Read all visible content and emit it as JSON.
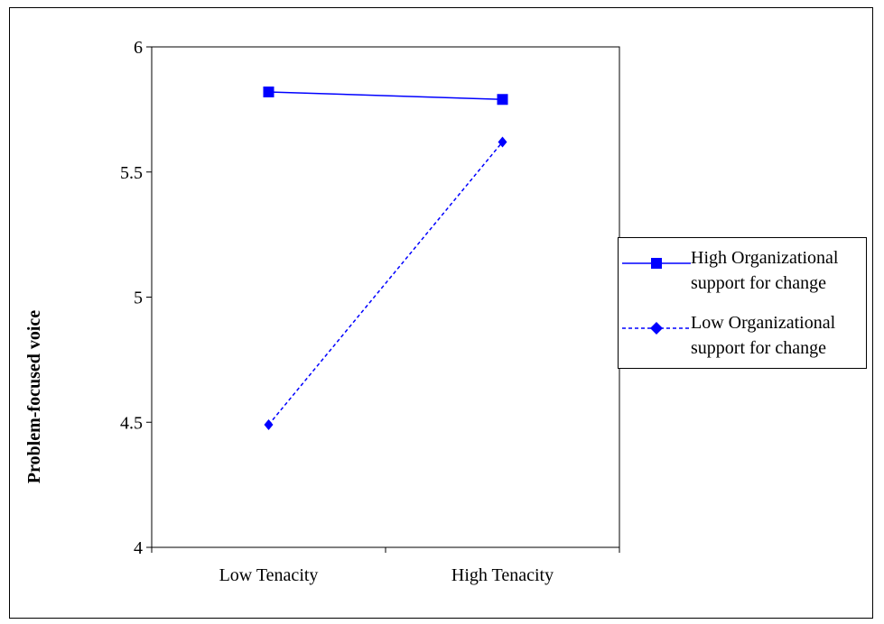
{
  "chart_data": {
    "type": "line",
    "categories": [
      "Low Tenacity",
      "High Tenacity"
    ],
    "series": [
      {
        "name": "High Organizational support for change",
        "values": [
          5.82,
          5.79
        ],
        "color": "#0000ff",
        "line_style": "solid",
        "marker": "square"
      },
      {
        "name": "Low Organizational support for change",
        "values": [
          4.49,
          5.62
        ],
        "color": "#0000ff",
        "line_style": "dashed",
        "marker": "diamond"
      }
    ],
    "title": "",
    "xlabel": "",
    "ylabel": "Problem-focused voice",
    "ylim": [
      4,
      6
    ],
    "yticks": [
      "4",
      "4.5",
      "5",
      "5.5",
      "6"
    ],
    "grid": false,
    "legend_position": "right"
  },
  "legend": {
    "items": [
      {
        "line1": "High Organizational",
        "line2": "support for change"
      },
      {
        "line1": "Low Organizational",
        "line2": "support for change"
      }
    ]
  }
}
